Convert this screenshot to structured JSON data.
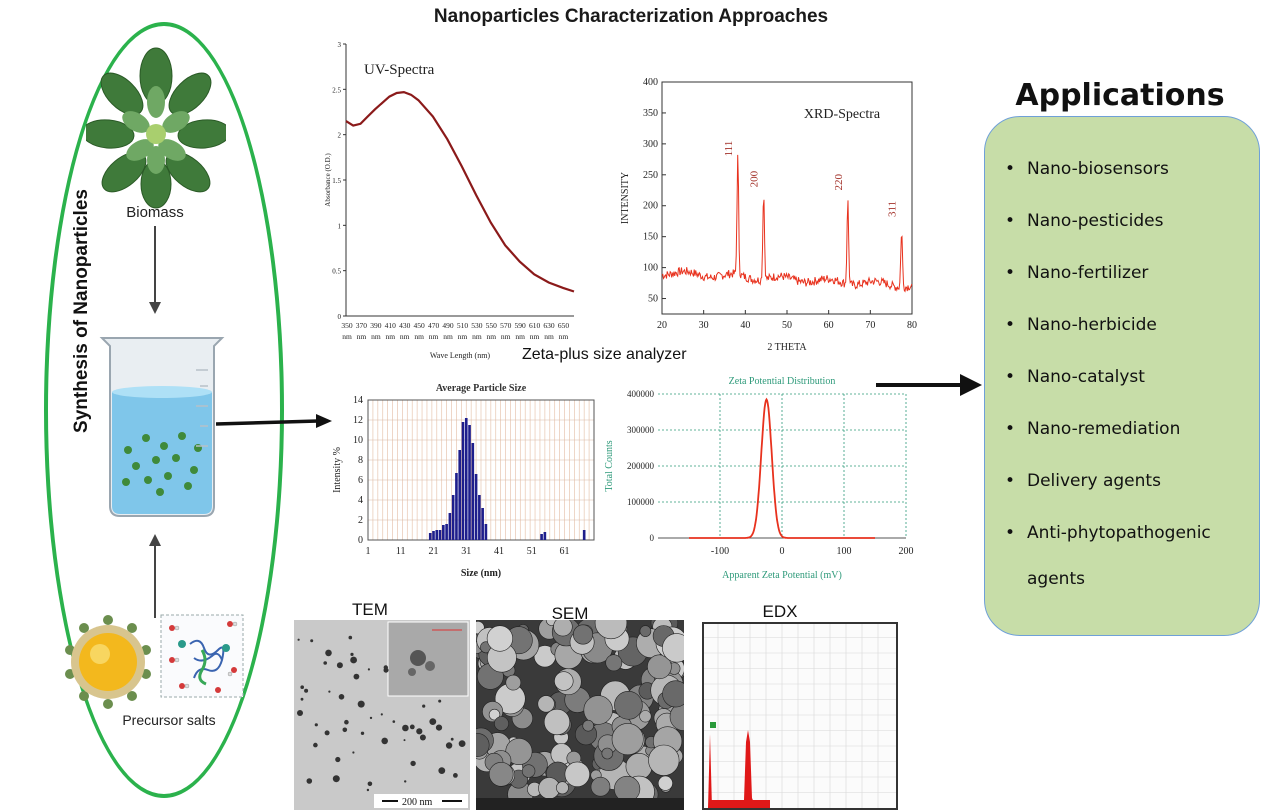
{
  "title": "Nanoparticles Characterization Approaches",
  "synthesis": {
    "title": "Synthesis of Nanoparticles",
    "biomass_label": "Biomass",
    "precursor_label": "Precursor salts"
  },
  "zeta_size_label": "Zeta-plus size analyzer",
  "applications": {
    "title": "Applications",
    "items": [
      "Nano-biosensors",
      "Nano-pesticides",
      "Nano-fertilizer",
      "Nano-herbicide",
      "Nano-catalyst",
      "Nano-remediation",
      "Delivery agents",
      "Anti-phytopathogenic",
      "agents"
    ]
  },
  "micrographs": {
    "tem": "TEM",
    "sem": "SEM",
    "edx": "EDX",
    "scale": "200 nm"
  },
  "colors": {
    "oval": "#2bb24c",
    "uv_line": "#8b1a1a",
    "xrd_line": "#e8321e",
    "bar": "#1e1e8c",
    "zeta_line": "#e8321e",
    "app_bg": "#c7dda8"
  },
  "chart_data": [
    {
      "type": "line",
      "title": "UV-Spectra",
      "xlabel": "Wave Length (nm)",
      "ylabel": "Absorbance (O.D.)",
      "x_ticks": [
        "350",
        "370",
        "390",
        "410",
        "430",
        "450",
        "470",
        "490",
        "510",
        "530",
        "550",
        "570",
        "590",
        "610",
        "630",
        "650"
      ],
      "x_tick_unit": "nm",
      "y_ticks": [
        "0",
        "0.5",
        "1",
        "1.5",
        "2",
        "2.5",
        "3"
      ],
      "xlim": [
        350,
        665
      ],
      "ylim": [
        0,
        3
      ],
      "x": [
        350,
        360,
        370,
        380,
        390,
        400,
        410,
        420,
        430,
        440,
        450,
        470,
        490,
        510,
        530,
        550,
        570,
        590,
        610,
        630,
        650,
        665
      ],
      "y": [
        2.15,
        2.1,
        2.12,
        2.2,
        2.28,
        2.35,
        2.42,
        2.46,
        2.47,
        2.44,
        2.38,
        2.2,
        1.95,
        1.65,
        1.33,
        1.03,
        0.78,
        0.6,
        0.46,
        0.37,
        0.31,
        0.27
      ]
    },
    {
      "type": "line",
      "title": "XRD-Spectra",
      "xlabel": "2 THETA",
      "ylabel": "INTENSITY",
      "x_ticks": [
        "20",
        "30",
        "40",
        "50",
        "60",
        "70",
        "80"
      ],
      "y_ticks": [
        "50",
        "100",
        "150",
        "200",
        "250",
        "300",
        "350",
        "400"
      ],
      "xlim": [
        20,
        80
      ],
      "ylim": [
        25,
        400
      ],
      "peaks": [
        {
          "label": "111",
          "x": 38.2,
          "y": 270
        },
        {
          "label": "200",
          "x": 44.4,
          "y": 220
        },
        {
          "label": "220",
          "x": 64.6,
          "y": 215
        },
        {
          "label": "311",
          "x": 77.5,
          "y": 172
        }
      ]
    },
    {
      "type": "bar",
      "title": "Average Particle Size",
      "xlabel": "Size (nm)",
      "ylabel": "Intensity %",
      "x_ticks": [
        "1",
        "11",
        "21",
        "31",
        "41",
        "51",
        "61"
      ],
      "y_ticks": [
        "0",
        "2",
        "4",
        "6",
        "8",
        "10",
        "12",
        "14"
      ],
      "xlim": [
        1,
        70
      ],
      "ylim": [
        0,
        14
      ],
      "x": [
        20,
        21,
        22,
        23,
        24,
        25,
        26,
        27,
        28,
        29,
        30,
        31,
        32,
        33,
        34,
        35,
        36,
        37,
        54,
        55,
        67
      ],
      "values": [
        0.7,
        0.9,
        1.0,
        1.0,
        1.5,
        1.6,
        2.7,
        4.5,
        6.7,
        9.0,
        11.8,
        12.2,
        11.5,
        9.7,
        6.6,
        4.5,
        3.2,
        1.6,
        0.6,
        0.8,
        1.0
      ]
    },
    {
      "type": "line",
      "title": "Zeta Potential Distribution",
      "xlabel": "Apparent Zeta Potential (mV)",
      "ylabel": "Total Counts",
      "x_ticks": [
        "-100",
        "0",
        "100",
        "200"
      ],
      "y_ticks": [
        "0",
        "100000",
        "200000",
        "300000",
        "400000"
      ],
      "xlim": [
        -200,
        200
      ],
      "ylim": [
        0,
        400000
      ],
      "peak": {
        "x": -25,
        "y": 385000,
        "width": 20
      },
      "data_x_range": [
        -150,
        150
      ]
    }
  ]
}
